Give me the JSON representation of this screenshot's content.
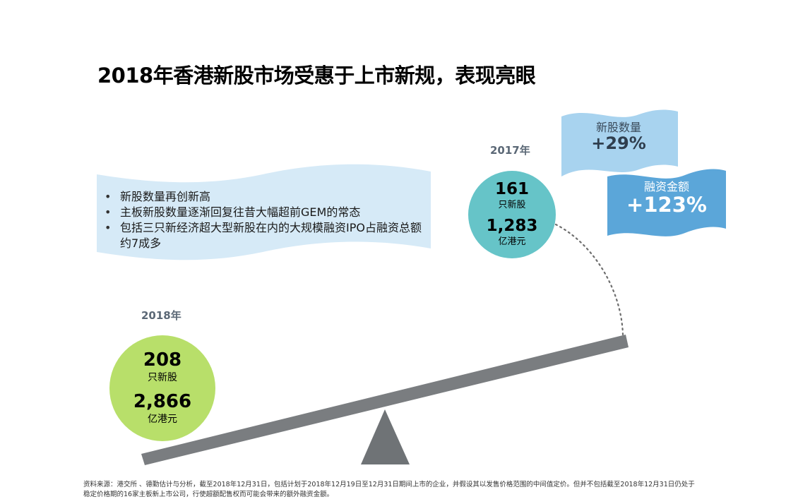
{
  "title": "2018年香港新股市场受惠于上市新规，表现亮眼",
  "year_2017": {
    "label": "2017年",
    "ipo_count": "161",
    "ipo_unit": "只新股",
    "funds": "1,283",
    "funds_unit": "亿港元",
    "color": "#66c4c8"
  },
  "year_2018": {
    "label": "2018年",
    "ipo_count": "208",
    "ipo_unit": "只新股",
    "funds": "2,866",
    "funds_unit": "亿港元",
    "color": "#b8df6a"
  },
  "highlights": [
    "新股数量再创新高",
    "主板新股数量逐渐回复往昔大幅超前GEM的常态",
    "包括三只新经济超大型新股在内的大规模融资IPO占融资总额约7成多"
  ],
  "flag_ipo_count": {
    "label": "新股数量",
    "change": "+29%",
    "color": "#a8d3ef"
  },
  "flag_funds": {
    "label": "融资金额",
    "change": "+123%",
    "color": "#5ba6d9"
  },
  "footnote": "资料来源：港交所 、德勤估计与分析，截至2018年12月31日，包括计划于2018年12月19日至12月31日期间上市的企业，并假设其以发售价格范围的中间值定价。但并不包括截至2018年12月31日仍处于稳定价格期的16家主板新上市公司，行使超额配售权而可能会带来的额外融资金额。",
  "colors": {
    "seesaw": "#7a7d80",
    "banner": "#d6eaf7"
  }
}
